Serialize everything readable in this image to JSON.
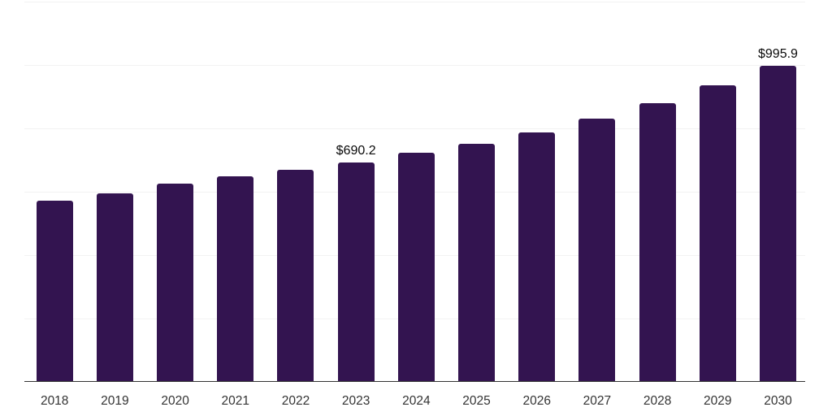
{
  "chart_data": {
    "type": "bar",
    "title": "",
    "xlabel": "",
    "ylabel": "",
    "categories": [
      "2018",
      "2019",
      "2020",
      "2021",
      "2022",
      "2023",
      "2024",
      "2025",
      "2026",
      "2027",
      "2028",
      "2029",
      "2030"
    ],
    "values": [
      569.5,
      592.3,
      624.4,
      646.0,
      666.5,
      690.2,
      722.0,
      750.3,
      785.1,
      830.0,
      878.9,
      934.5,
      995.9
    ],
    "value_labels": {
      "2023": "$690.2",
      "2030": "$995.9"
    },
    "ylim": [
      0,
      1200
    ],
    "gridline_step": 200,
    "grid": "horizontal",
    "legend_position": "none",
    "y_axis_tick_labels_visible": false,
    "colors": {
      "bar": "#331450",
      "gridline": "#f2f2f2",
      "axis_line": "#333333",
      "tick_label": "#333333",
      "value_label": "#0a0a0a",
      "background": "#ffffff"
    }
  }
}
